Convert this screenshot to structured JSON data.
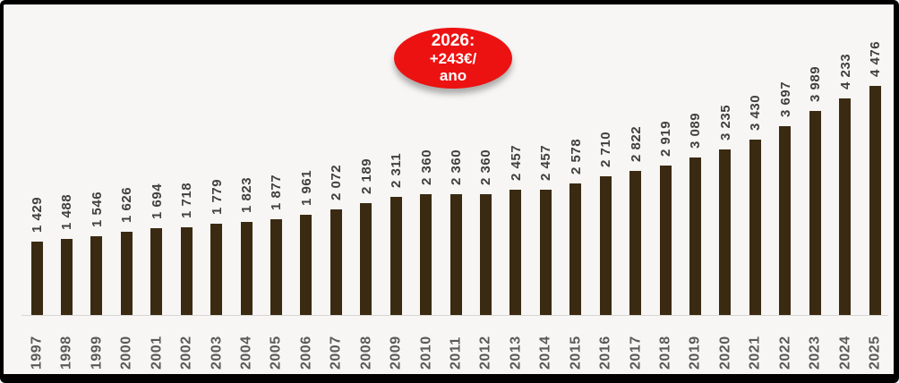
{
  "chart_data": {
    "type": "bar",
    "title": "",
    "xlabel": "",
    "ylabel": "",
    "categories": [
      "1997",
      "1998",
      "1999",
      "2000",
      "2001",
      "2002",
      "2003",
      "2004",
      "2005",
      "2006",
      "2007",
      "2008",
      "2009",
      "2010",
      "2011",
      "2012",
      "2013",
      "2014",
      "2015",
      "2016",
      "2017",
      "2018",
      "2019",
      "2020",
      "2021",
      "2022",
      "2023",
      "2024",
      "2025"
    ],
    "values": [
      1429,
      1488,
      1546,
      1626,
      1694,
      1718,
      1779,
      1823,
      1877,
      1961,
      2072,
      2189,
      2311,
      2360,
      2360,
      2360,
      2457,
      2457,
      2578,
      2710,
      2822,
      2919,
      3089,
      3235,
      3430,
      3697,
      3989,
      4233,
      4476
    ],
    "value_labels": [
      "1 429",
      "1 488",
      "1 546",
      "1 626",
      "1 694",
      "1 718",
      "1 779",
      "1 823",
      "1 877",
      "1 961",
      "2 072",
      "2 189",
      "2 311",
      "2 360",
      "2 360",
      "2 360",
      "2 457",
      "2 457",
      "2 578",
      "2 710",
      "2 822",
      "2 919",
      "3 089",
      "3 235",
      "3 430",
      "3 697",
      "3 989",
      "4 233",
      "4 476"
    ],
    "ylim": [
      0,
      4700
    ],
    "grid": false,
    "legend": "none",
    "label_rotation_degrees": 90,
    "colors": {
      "bar": "#3a2a12",
      "background": "#f7f6f4",
      "axis_line": "#d8d6d4",
      "value_label_text": "#404040",
      "year_label_text": "#595959",
      "frame_border": "#000000"
    }
  },
  "annotation": {
    "lines": [
      "2026:",
      "+243€/",
      "ano"
    ],
    "bg_color": "#ec1212",
    "text_color": "#ffffff"
  }
}
